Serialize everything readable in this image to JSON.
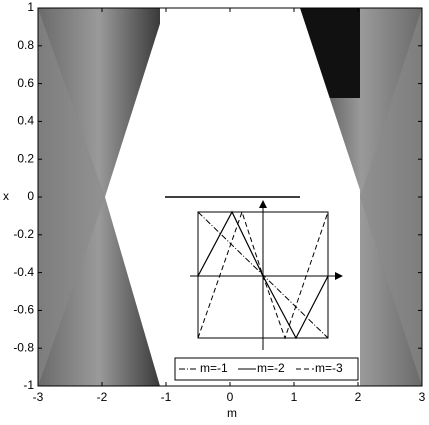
{
  "chart_data": {
    "type": "density",
    "xlabel": "m",
    "ylabel": "x",
    "xlim": [
      -3,
      3
    ],
    "ylim": [
      -1,
      1
    ],
    "xticks": [
      -3,
      -2,
      -1,
      0,
      1,
      2,
      3
    ],
    "yticks": [
      -1,
      -0.8,
      -0.6,
      -0.4,
      -0.2,
      0,
      0.2,
      0.4,
      0.6,
      0.8,
      1
    ],
    "inset_legend": [
      "m=-1",
      "m=-2",
      "m=-3"
    ]
  }
}
